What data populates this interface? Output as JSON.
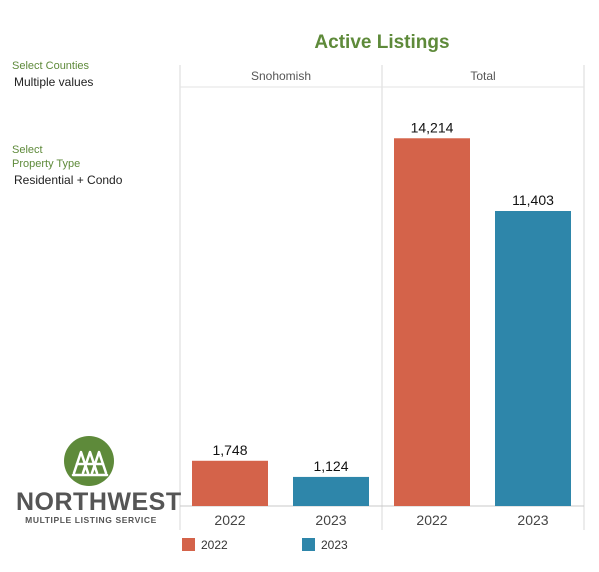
{
  "filters": {
    "counties_label": "Select Counties",
    "counties_value": "Multiple values",
    "property_label_line1": "Select",
    "property_label_line2": "Property Type",
    "property_value": "Residential + Condo"
  },
  "logo": {
    "name": "NORTHWEST",
    "subtitle": "MULTIPLE LISTING SERVICE",
    "icon": "tree-icon"
  },
  "colors": {
    "title": "#5e8a3a",
    "series_2022": "#d4634a",
    "series_2023": "#2e86aa"
  },
  "chart_data": {
    "type": "bar",
    "title": "Active Listings",
    "panels": [
      {
        "name": "Snohomish",
        "categories": [
          "2022",
          "2023"
        ],
        "values": [
          1748,
          1124
        ],
        "labels": [
          "1,748",
          "1,124"
        ]
      },
      {
        "name": "Total",
        "categories": [
          "2022",
          "2023"
        ],
        "values": [
          14214,
          11403
        ],
        "labels": [
          "14,214",
          "11,403"
        ]
      }
    ],
    "ylim": [
      0,
      15500
    ],
    "grid": false,
    "legend": {
      "position": "bottom",
      "items": [
        {
          "label": "2022",
          "color": "#d4634a"
        },
        {
          "label": "2023",
          "color": "#2e86aa"
        }
      ]
    }
  }
}
